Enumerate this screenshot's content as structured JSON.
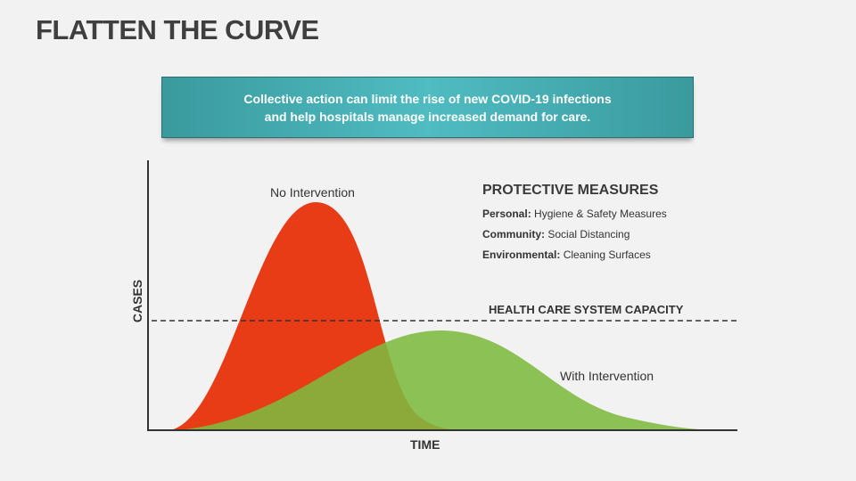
{
  "title": "FLATTEN THE CURVE",
  "banner": {
    "line1": "Collective action can limit the rise of new COVID-19 infections",
    "line2": "and help hospitals manage increased demand for care."
  },
  "curves": {
    "no_intervention": "No Intervention",
    "with_intervention": "With Intervention",
    "no_intervention_color": "#e83c17",
    "with_intervention_color": "#7db940"
  },
  "measures": {
    "title": "PROTECTIVE MEASURES",
    "items": [
      {
        "label": "Personal:",
        "value": "Hygiene & Safety Measures"
      },
      {
        "label": "Community:",
        "value": "Social Distancing"
      },
      {
        "label": "Environmental:",
        "value": "Cleaning Surfaces"
      }
    ]
  },
  "capacity": "HEALTH CARE SYSTEM CAPACITY",
  "axes": {
    "y": "CASES",
    "x": "TIME"
  }
}
